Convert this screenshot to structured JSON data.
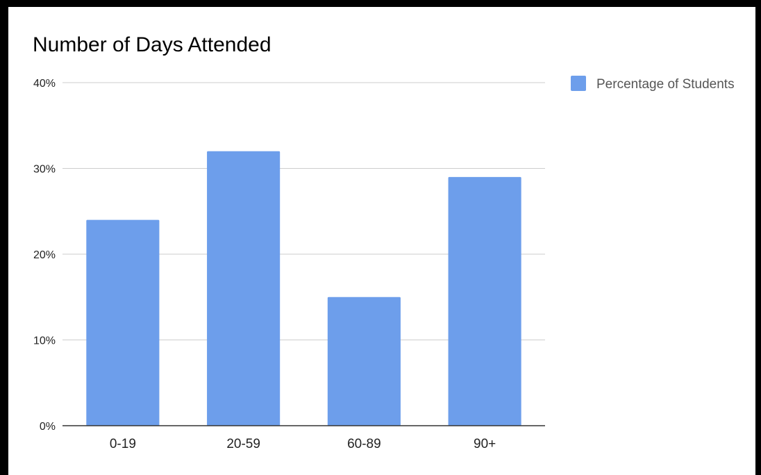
{
  "chart_data": {
    "type": "bar",
    "title": "Number of Days Attended",
    "categories": [
      "0-19",
      "20-59",
      "60-89",
      "90+"
    ],
    "series": [
      {
        "name": "Percentage of Students",
        "values": [
          24,
          32,
          15,
          29
        ],
        "color": "#6d9eeb"
      }
    ],
    "y_ticks": [
      "0%",
      "10%",
      "20%",
      "30%",
      "40%"
    ],
    "ylim": [
      0,
      40
    ],
    "y_unit": "%",
    "grid": true,
    "legend_position": "right"
  }
}
